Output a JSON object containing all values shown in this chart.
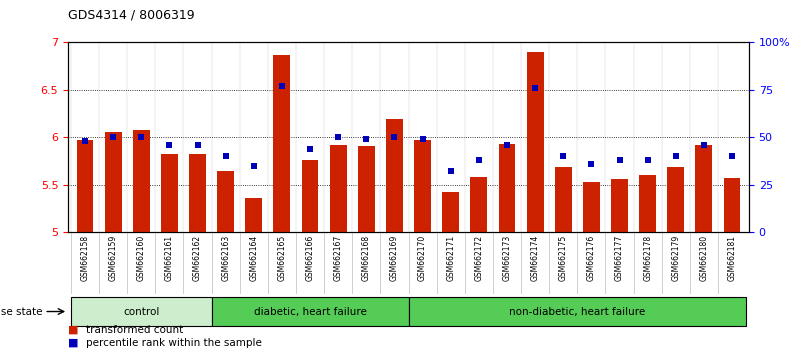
{
  "title": "GDS4314 / 8006319",
  "samples": [
    "GSM662158",
    "GSM662159",
    "GSM662160",
    "GSM662161",
    "GSM662162",
    "GSM662163",
    "GSM662164",
    "GSM662165",
    "GSM662166",
    "GSM662167",
    "GSM662168",
    "GSM662169",
    "GSM662170",
    "GSM662171",
    "GSM662172",
    "GSM662173",
    "GSM662174",
    "GSM662175",
    "GSM662176",
    "GSM662177",
    "GSM662178",
    "GSM662179",
    "GSM662180",
    "GSM662181"
  ],
  "transformed_count": [
    5.97,
    6.05,
    6.08,
    5.82,
    5.82,
    5.64,
    5.36,
    6.87,
    5.76,
    5.92,
    5.91,
    6.19,
    5.97,
    5.42,
    5.58,
    5.93,
    6.9,
    5.68,
    5.53,
    5.56,
    5.6,
    5.69,
    5.92,
    5.57
  ],
  "percentile": [
    48,
    50,
    50,
    46,
    46,
    40,
    35,
    77,
    44,
    50,
    49,
    50,
    49,
    32,
    38,
    46,
    76,
    40,
    36,
    38,
    38,
    40,
    46,
    40
  ],
  "bar_color": "#cc2200",
  "dot_color": "#0000bb",
  "ylim_left": [
    5.0,
    7.0
  ],
  "yticks_left": [
    5.0,
    5.5,
    6.0,
    6.5,
    7.0
  ],
  "ytick_labels_left": [
    "5",
    "5.5",
    "6",
    "6.5",
    "7"
  ],
  "yticks_right": [
    0,
    25,
    50,
    75,
    100
  ],
  "ytick_labels_right": [
    "0",
    "25",
    "50",
    "75",
    "100%"
  ],
  "grid_values": [
    5.5,
    6.0,
    6.5
  ],
  "group_info": [
    {
      "label": "control",
      "start": 0,
      "end": 4,
      "color": "#cceecc"
    },
    {
      "label": "diabetic, heart failure",
      "start": 5,
      "end": 11,
      "color": "#55cc55"
    },
    {
      "label": "non-diabetic, heart failure",
      "start": 12,
      "end": 23,
      "color": "#55cc55"
    }
  ],
  "plot_bg": "#ffffff",
  "xtick_bg": "#dddddd",
  "bar_width": 0.6
}
